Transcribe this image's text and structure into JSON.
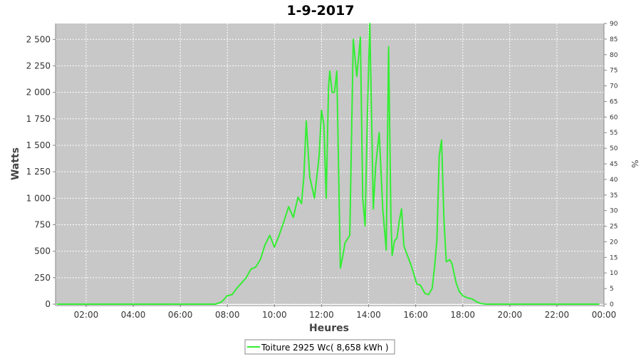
{
  "chart_data": {
    "type": "line",
    "title": "1-9-2017",
    "xlabel": "Heures",
    "ylabel": "Watts",
    "y2label": "%",
    "x_ticks": [
      "02:00",
      "04:00",
      "06:00",
      "08:00",
      "10:00",
      "12:00",
      "14:00",
      "16:00",
      "18:00",
      "20:00",
      "22:00",
      "00:00"
    ],
    "y_ticks": [
      "0",
      "250",
      "500",
      "750",
      "1 000",
      "1 250",
      "1 500",
      "1 750",
      "2 000",
      "2 250",
      "2 500"
    ],
    "y2_ticks": [
      "0",
      "5",
      "10",
      "15",
      "20",
      "25",
      "30",
      "35",
      "40",
      "45",
      "50",
      "55",
      "60",
      "65",
      "70",
      "75",
      "80",
      "85",
      "90"
    ],
    "xlim": [
      0.7,
      24.0
    ],
    "ylim": [
      0,
      2650
    ],
    "y2lim": [
      0,
      90
    ],
    "grid": true,
    "legend": "bottom",
    "colors": {
      "series": "#33ee33",
      "plot_bg": "#c8c8c8",
      "grid": "#ffffff"
    },
    "series": [
      {
        "name": "Toiture 2925 Wc( 8,658 kWh )",
        "x": [
          0.75,
          7.5,
          7.75,
          8.0,
          8.2,
          8.4,
          8.6,
          8.8,
          9.0,
          9.2,
          9.4,
          9.6,
          9.8,
          10.0,
          10.2,
          10.4,
          10.6,
          10.8,
          11.0,
          11.15,
          11.25,
          11.35,
          11.5,
          11.7,
          11.9,
          12.0,
          12.1,
          12.2,
          12.3,
          12.35,
          12.45,
          12.55,
          12.65,
          12.8,
          12.9,
          13.0,
          13.2,
          13.35,
          13.5,
          13.65,
          13.75,
          13.85,
          13.95,
          14.05,
          14.15,
          14.2,
          14.3,
          14.45,
          14.6,
          14.75,
          14.85,
          14.95,
          15.0,
          15.1,
          15.2,
          15.3,
          15.4,
          15.5,
          15.7,
          15.8,
          15.9,
          16.05,
          16.2,
          16.4,
          16.55,
          16.7,
          16.8,
          16.9,
          17.0,
          17.1,
          17.2,
          17.3,
          17.45,
          17.55,
          17.62,
          17.72,
          17.85,
          18.0,
          18.2,
          18.4,
          18.6,
          18.8,
          19.0,
          19.2,
          19.6,
          23.8
        ],
        "values": [
          0,
          0,
          20,
          80,
          90,
          150,
          200,
          250,
          330,
          350,
          420,
          560,
          650,
          540,
          650,
          780,
          920,
          820,
          1010,
          950,
          1200,
          1730,
          1200,
          1000,
          1400,
          1830,
          1700,
          1000,
          2050,
          2200,
          2000,
          2000,
          2200,
          340,
          450,
          580,
          650,
          2500,
          2150,
          2520,
          1000,
          740,
          1800,
          2650,
          1500,
          900,
          1300,
          1620,
          900,
          510,
          2430,
          800,
          460,
          600,
          620,
          780,
          900,
          550,
          430,
          370,
          300,
          190,
          180,
          100,
          90,
          150,
          350,
          600,
          1400,
          1550,
          800,
          400,
          420,
          380,
          300,
          200,
          120,
          80,
          60,
          50,
          20,
          5,
          0,
          0,
          0,
          0
        ]
      }
    ]
  }
}
